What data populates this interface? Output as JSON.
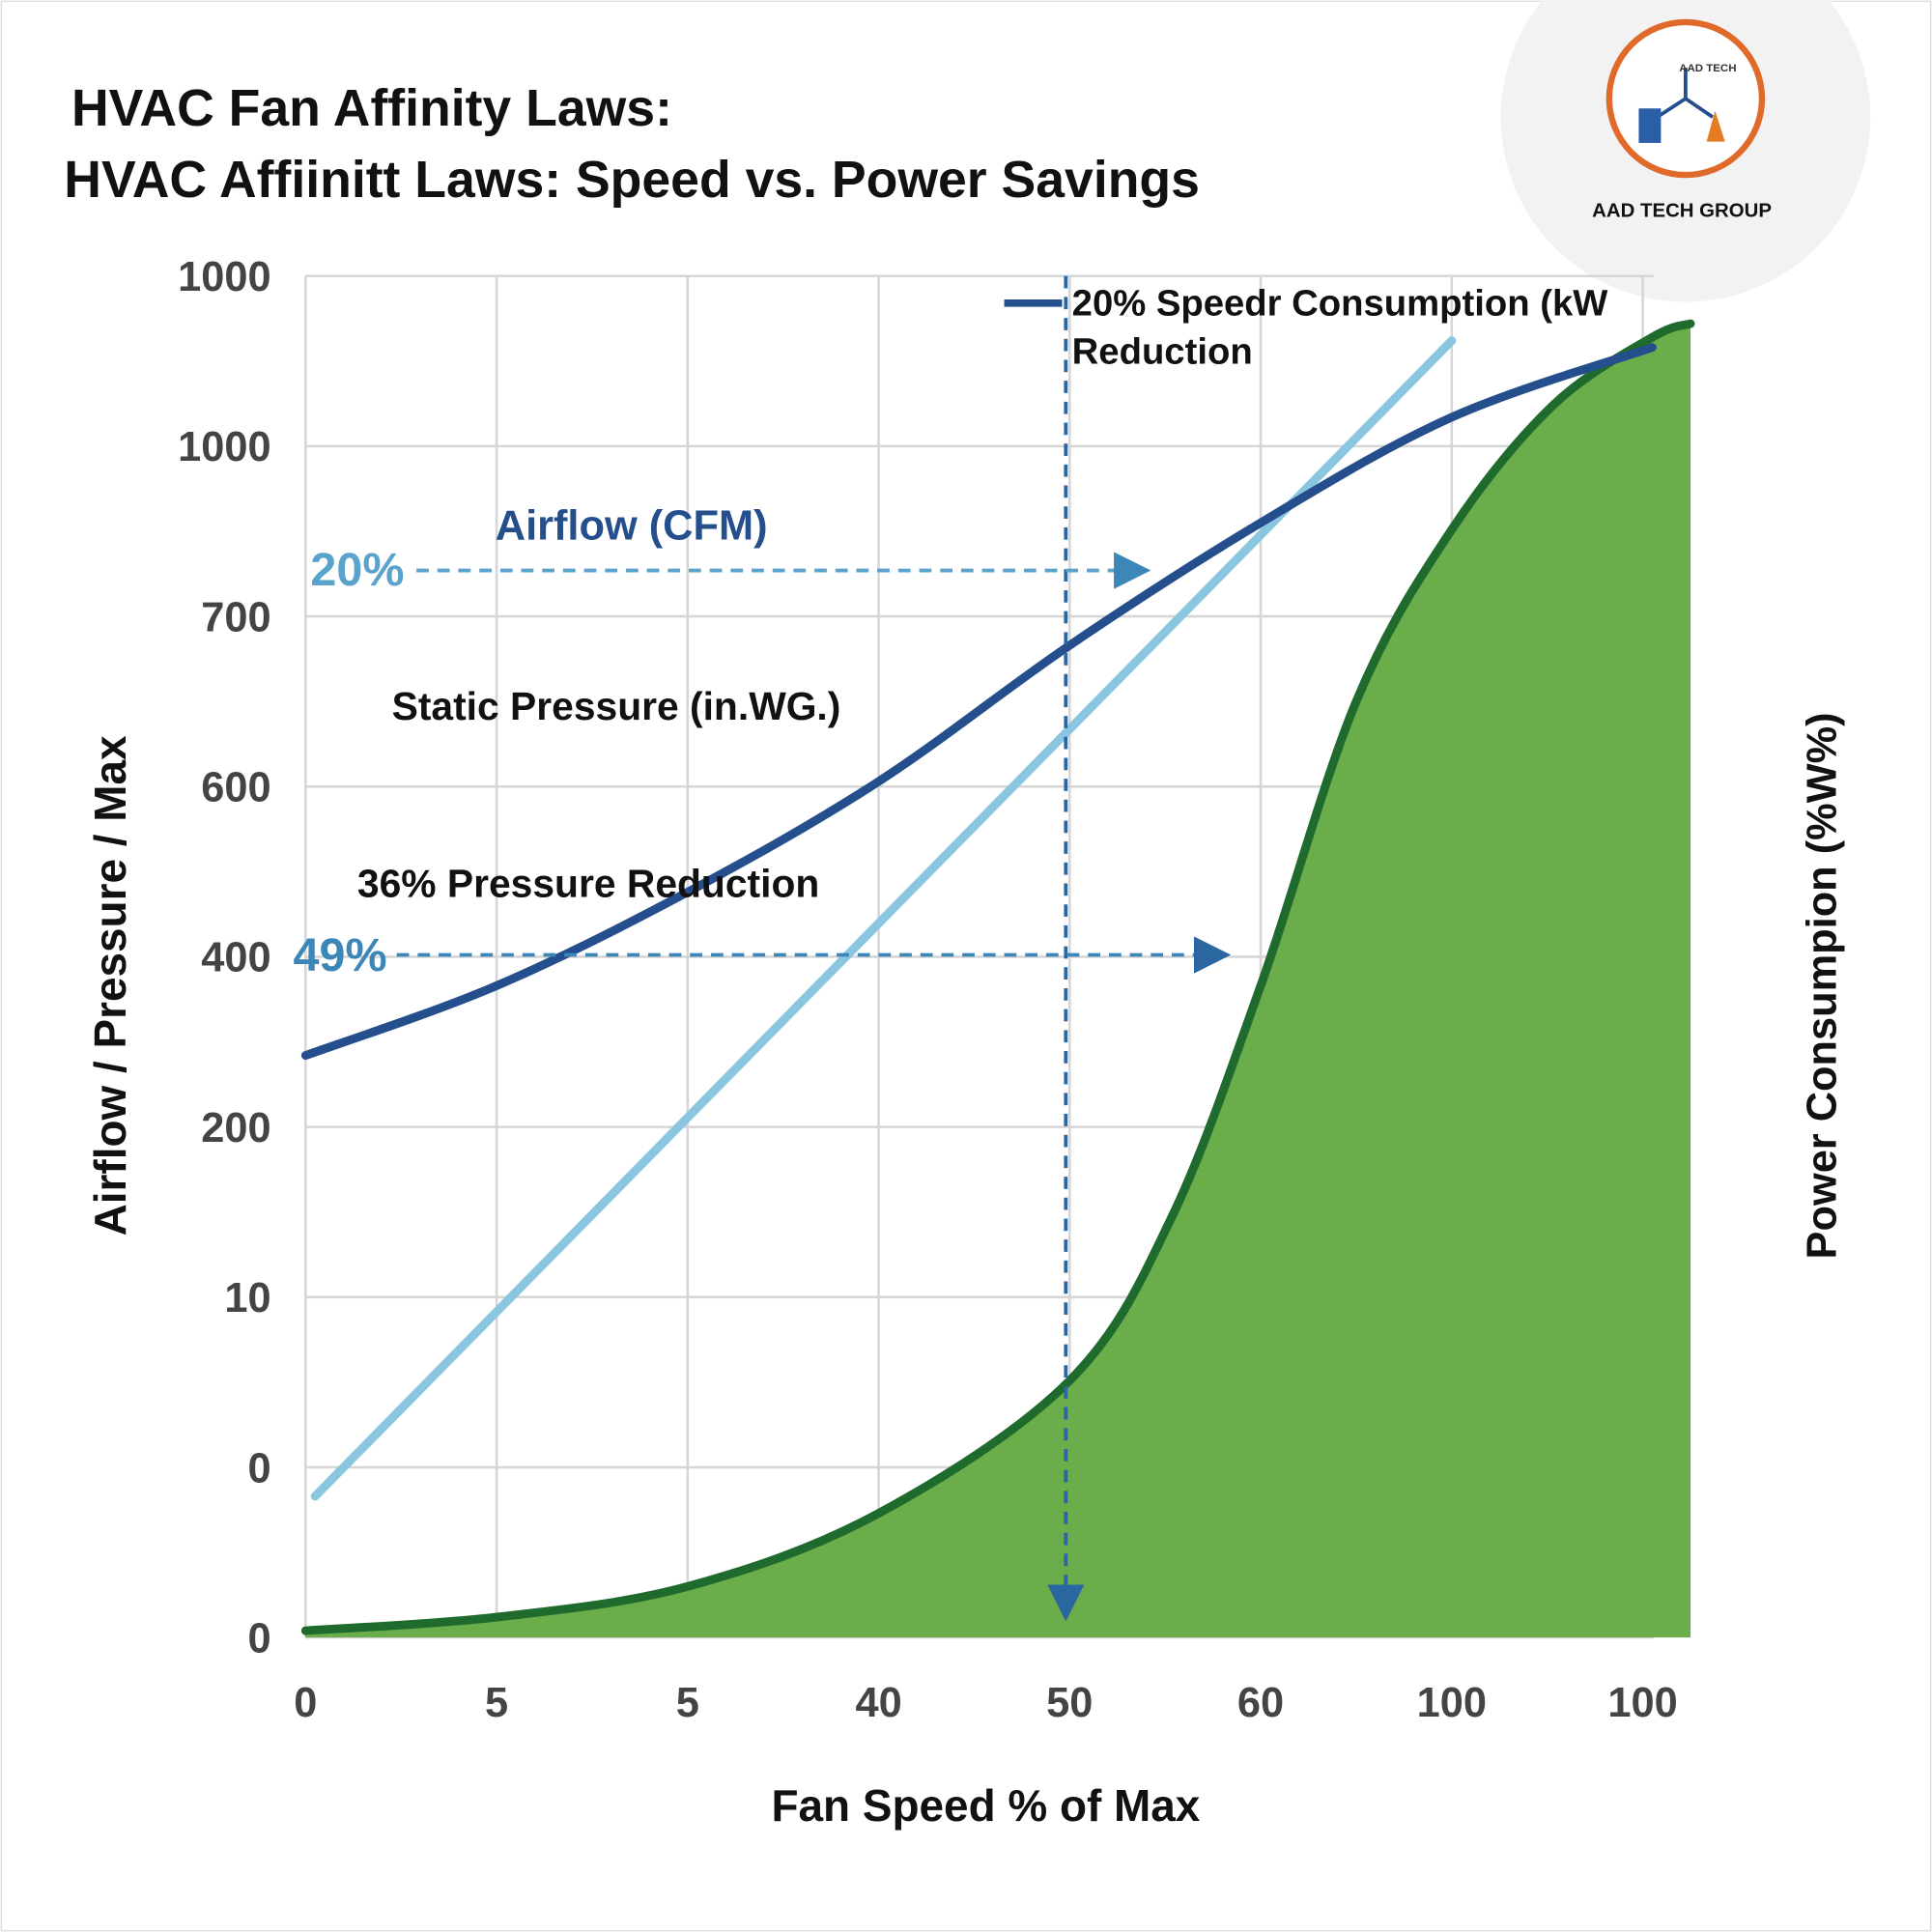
{
  "chart_data": {
    "type": "line",
    "title": "HVAC Fan Affinity Laws:",
    "subtitle": "HVAC Affiinitt Laws: Speed vs. Power Savings",
    "xlabel": "Fan Speed % of Max",
    "ylabel": "Airflow / Pressure / Max",
    "y2label": "Power Consumpion (%W%)",
    "xlim": [
      0,
      7.25
    ],
    "xticks": [
      {
        "value": 0,
        "label": "0"
      },
      {
        "value": 1,
        "label": "5"
      },
      {
        "value": 2,
        "label": "5"
      },
      {
        "value": 3,
        "label": "40"
      },
      {
        "value": 4,
        "label": "50"
      },
      {
        "value": 5,
        "label": "60"
      },
      {
        "value": 6,
        "label": "100"
      },
      {
        "value": 7,
        "label": "100"
      }
    ],
    "ylim": [
      0,
      8
    ],
    "yticks": [
      {
        "value": 0,
        "label": "0"
      },
      {
        "value": 1,
        "label": "0"
      },
      {
        "value": 2,
        "label": "10"
      },
      {
        "value": 3,
        "label": "200"
      },
      {
        "value": 4,
        "label": "400"
      },
      {
        "value": 5,
        "label": "600"
      },
      {
        "value": 6,
        "label": "700"
      },
      {
        "value": 7,
        "label": "1000"
      },
      {
        "value": 8,
        "label": "1000"
      }
    ],
    "grid": true,
    "series": [
      {
        "name": "Airflow (CFM)",
        "color": "#244f8c",
        "x": [
          0,
          1,
          2,
          3,
          4,
          5,
          6,
          7.05
        ],
        "values": [
          3.42,
          3.83,
          4.38,
          5.03,
          5.83,
          6.55,
          7.17,
          7.58
        ]
      },
      {
        "name": "Static Pressure (in.WG.)",
        "color": "#8ac6df",
        "x": [
          0.05,
          6
        ],
        "values": [
          0.83,
          7.62
        ]
      },
      {
        "color": "#1f6b2e",
        "fill": "#6aad4a",
        "style": "area",
        "x": [
          0,
          1,
          2,
          3,
          4,
          4.53,
          5,
          5.5,
          6,
          6.53,
          7.05,
          7.25
        ],
        "values": [
          0.04,
          0.12,
          0.3,
          0.73,
          1.51,
          2.46,
          3.83,
          5.5,
          6.51,
          7.24,
          7.64,
          7.72
        ]
      }
    ],
    "legend_text": [
      "20% Speedr Consumption (kW",
      "Reduction"
    ],
    "annotations": [
      "20%",
      "49%",
      "36% Pressure Reduction"
    ],
    "logo": {
      "mark": "AAD TECH",
      "name": "AAD TECH GROUP"
    }
  }
}
